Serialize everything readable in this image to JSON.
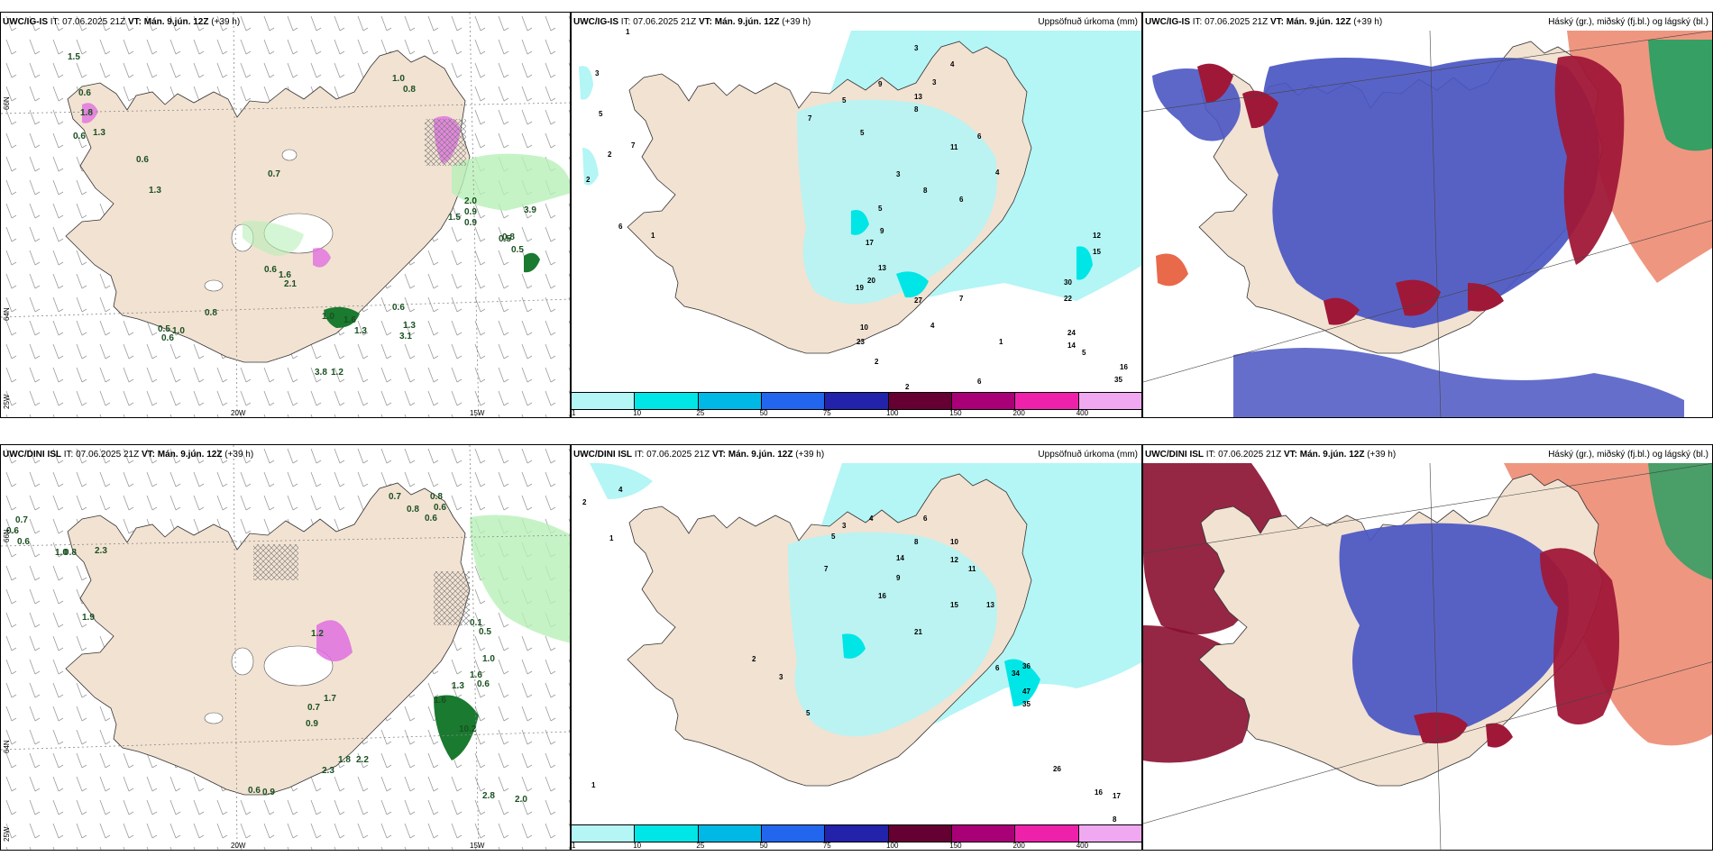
{
  "rows": [
    {
      "model": "UWC/IG-IS",
      "it_label": "IT:",
      "it_value": "07.06.2025 21Z",
      "vt_label": "VT:",
      "vt_value": "Mán. 9.jún. 12Z",
      "lead": "(+39 h)"
    },
    {
      "model": "UWC/DINI ISL",
      "it_label": "IT:",
      "it_value": "07.06.2025 21Z",
      "vt_label": "VT:",
      "vt_value": "Mán. 9.jún. 12Z",
      "lead": "(+39 h)"
    }
  ],
  "precip_title": "Uppsöfnuð úrkoma (mm)",
  "cloud_title": "Háský (gr.), miðský (fj.bl.) og lágský (bl.)",
  "colorbar": {
    "ticks": [
      "1",
      "10",
      "25",
      "50",
      "75",
      "100",
      "150",
      "200",
      "400"
    ],
    "colors": [
      "#b4f5f5",
      "#00e6e6",
      "#00b8e6",
      "#2266ee",
      "#2222aa",
      "#660033",
      "#aa0077",
      "#ee22aa",
      "#f0a8f0"
    ]
  },
  "axis_labels": {
    "lon_20w": "20W",
    "lon_15w": "15W",
    "lat_66n": "66N",
    "lat_64n": "64N",
    "lon_25w": "25W"
  },
  "colors": {
    "land": "#f2e2d2",
    "precip_light": "#b4f5f5",
    "precip_mid": "#00e6e6",
    "cloud_blue": "#4a56c2",
    "cloud_red": "#a01838",
    "cloud_orange": "#e86a4a",
    "cloud_green": "#20a060",
    "light_green": "#b8f0b8",
    "dark_green": "#1a7a30",
    "pink": "#e070e0"
  },
  "top_left_values": [
    "1.5",
    "0.6",
    "1.8",
    "0.6",
    "1.3",
    "0.6",
    "1.3",
    "0.7",
    "1.0",
    "0.8",
    "0.9",
    "0.8",
    "1.5",
    "2.0",
    "0.9",
    "0.5",
    "0.5",
    "0.6",
    "1.6",
    "2.1",
    "0.8",
    "1.0",
    "1.6",
    "1.3",
    "3.9",
    "0.5",
    "0.6",
    "1.0",
    "0.6",
    "1.3",
    "3.1",
    "3.8",
    "1.2"
  ],
  "bottom_left_values": [
    "0.7",
    "0.6",
    "0.6",
    "1.0",
    "0.8",
    "2.3",
    "0.7",
    "0.8",
    "0.6",
    "0.8",
    "0.6",
    "1.2",
    "0.1",
    "0.5",
    "1.0",
    "1.6",
    "1.3",
    "0.6",
    "1.7",
    "0.7",
    "0.9",
    "1.6",
    "2.3",
    "1.8",
    "2.2",
    "0.6",
    "0.9",
    "10.2",
    "2.8",
    "2.0",
    "1.9"
  ],
  "top_mid_values": [
    "1",
    "3",
    "2",
    "6",
    "7",
    "5",
    "2",
    "7",
    "1",
    "3",
    "4",
    "5",
    "9",
    "8",
    "3",
    "13",
    "5",
    "11",
    "6",
    "4",
    "8",
    "3",
    "5",
    "6",
    "9",
    "12",
    "15",
    "17",
    "13",
    "20",
    "19",
    "27",
    "7",
    "30",
    "22",
    "24",
    "14",
    "5",
    "16",
    "35",
    "10",
    "23",
    "4",
    "2",
    "1",
    "6",
    "2"
  ],
  "bottom_mid_values": [
    "4",
    "2",
    "1",
    "5",
    "3",
    "4",
    "6",
    "8",
    "7",
    "9",
    "10",
    "12",
    "14",
    "16",
    "11",
    "13",
    "15",
    "21",
    "36",
    "34",
    "47",
    "35",
    "26",
    "16",
    "17",
    "8",
    "6",
    "5",
    "3",
    "2",
    "1"
  ]
}
